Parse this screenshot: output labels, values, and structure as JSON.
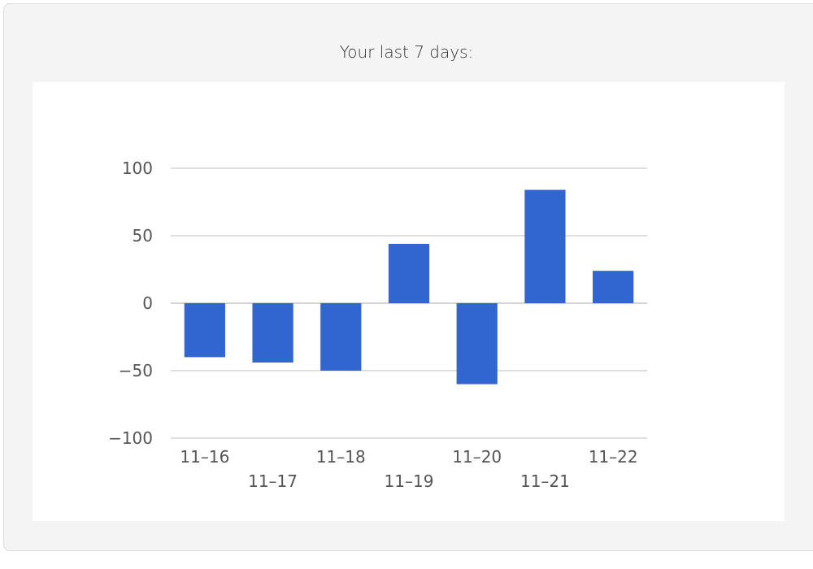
{
  "card": {
    "title": "Your last 7 days:"
  },
  "colors": {
    "bar": "#3166d0",
    "grid": "#cccccc",
    "baseline": "#bbbbbb",
    "label": "#555555",
    "card_bg": "#f4f4f4",
    "panel_bg": "#ffffff"
  },
  "chart_data": {
    "type": "bar",
    "title": "",
    "xlabel": "",
    "ylabel": "",
    "categories": [
      "11-16",
      "11-17",
      "11-18",
      "11-19",
      "11-20",
      "11-21",
      "11-22"
    ],
    "values": [
      -40,
      -44,
      -50,
      44,
      -60,
      84,
      24
    ],
    "ylim": [
      -100,
      100
    ],
    "yticks": [
      100,
      50,
      0,
      -50,
      -100
    ],
    "ytick_labels": [
      "100",
      "50",
      "0",
      "−50",
      "−100"
    ],
    "xtick_labels": [
      "11–16",
      "11–17",
      "11–18",
      "11–19",
      "11–20",
      "11–21",
      "11–22"
    ],
    "grid": true,
    "legend": "none"
  }
}
